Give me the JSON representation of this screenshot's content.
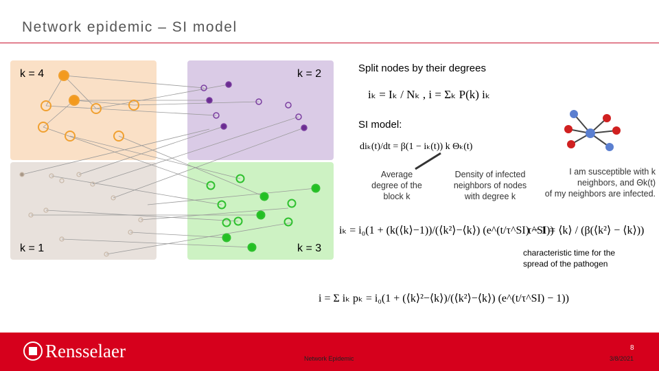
{
  "header": {
    "title": "Network epidemic – SI model"
  },
  "network": {
    "quadrants": [
      "k = 4",
      "k = 2",
      "k = 1",
      "k = 3"
    ]
  },
  "content": {
    "split_heading": "Split nodes by their degrees",
    "split_formula": "iₖ = Iₖ / Nₖ ,    i = Σₖ P(k) iₖ",
    "si_heading": "SI model:",
    "si_formula": "diₖ(t)/dt = β(1 − iₖ(t)) k Θₖ(t)",
    "average_note": [
      "Average",
      "degree of the",
      "block k"
    ],
    "density_note": [
      "Density of infected",
      "neighbors of nodes",
      "with degree k"
    ],
    "susceptible_note": [
      "I am susceptible with k",
      "neighbors, and Θk(t)",
      "of my neighbors are infected."
    ],
    "ik_formula": "iₖ = i₀(1 + (k(⟨k⟩−1))/(⟨k²⟩−⟨k⟩) (e^(t/τ^SI) − 1))",
    "tau_formula": "τ^SI = ⟨k⟩ / (β(⟨k²⟩ − ⟨k⟩))",
    "tau_note": [
      "characteristic time for the",
      "spread of the pathogen"
    ],
    "i_formula": "i = Σ iₖ pₖ = i₀(1 + (⟨k⟩²−⟨k⟩)/(⟨k²⟩−⟨k⟩) (e^(t/τ^SI) − 1))"
  },
  "footer": {
    "logo": "Rensselaer",
    "center": "Network Epidemic",
    "page": "8",
    "date": "3/8/2021"
  }
}
